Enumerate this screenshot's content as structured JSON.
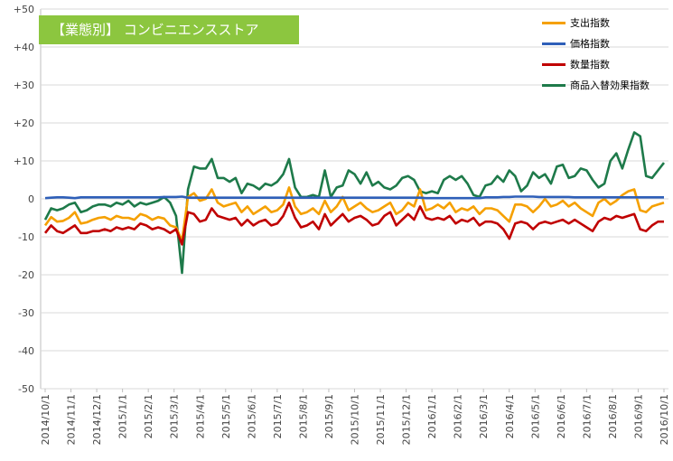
{
  "title": "【業態別】 コンビニエンスストア",
  "colors": {
    "spending": "#f5a000",
    "price": "#2e5fb8",
    "quantity": "#c00000",
    "switching": "#1e7a4a",
    "title_bg": "#8cc63f",
    "grid": "#d9d9d9"
  },
  "chart_data": {
    "type": "line",
    "title": "【業態別】 コンビニエンスストア",
    "xlabel": "",
    "ylabel": "",
    "ylim": [
      -50,
      50
    ],
    "yticks": [
      50,
      40,
      30,
      20,
      10,
      0,
      -10,
      -20,
      -30,
      -40,
      -50
    ],
    "ytick_labels": [
      "+50",
      "+40",
      "+30",
      "+20",
      "+10",
      "0",
      "-10",
      "-20",
      "-30",
      "-40",
      "-50"
    ],
    "xtick_labels": [
      "2014/10/1",
      "2014/11/1",
      "2014/12/1",
      "2015/1/1",
      "2015/2/1",
      "2015/3/1",
      "2015/4/1",
      "2015/5/1",
      "2015/6/1",
      "2015/7/1",
      "2015/8/1",
      "2015/9/1",
      "2015/10/1",
      "2015/11/1",
      "2015/12/1",
      "2016/1/1",
      "2016/2/1",
      "2016/3/1",
      "2016/4/1",
      "2016/5/1",
      "2016/6/1",
      "2016/7/1",
      "2016/8/1",
      "2016/9/1",
      "2016/10/1"
    ],
    "grid": "horizontal",
    "legend_position": "top-right",
    "series": [
      {
        "name": "支出指数",
        "values": [
          -7.0,
          -4.8,
          -6.0,
          -5.8,
          -5.0,
          -3.5,
          -6.5,
          -6.2,
          -5.5,
          -5.0,
          -4.8,
          -5.5,
          -4.5,
          -5.0,
          -5.0,
          -5.5,
          -4.0,
          -4.5,
          -5.5,
          -4.8,
          -5.2,
          -7.0,
          -7.5,
          -11.0,
          0.5,
          1.5,
          -0.5,
          0.0,
          2.5,
          -1.0,
          -2.0,
          -1.5,
          -1.0,
          -3.5,
          -2.0,
          -4.0,
          -3.0,
          -2.0,
          -3.5,
          -3.0,
          -1.5,
          3.0,
          -2.0,
          -4.0,
          -3.5,
          -2.5,
          -4.0,
          -0.5,
          -3.5,
          -2.0,
          0.5,
          -3.0,
          -2.0,
          -1.0,
          -2.5,
          -3.5,
          -3.0,
          -2.0,
          -1.0,
          -4.0,
          -3.0,
          -1.0,
          -2.0,
          2.5,
          -3.0,
          -2.5,
          -1.5,
          -2.5,
          -1.0,
          -3.5,
          -2.5,
          -3.0,
          -2.0,
          -4.0,
          -2.5,
          -2.5,
          -3.0,
          -4.5,
          -6.0,
          -1.5,
          -1.5,
          -2.0,
          -3.5,
          -2.0,
          0.0,
          -2.0,
          -1.5,
          -0.5,
          -2.0,
          -1.0,
          -2.5,
          -3.5,
          -4.5,
          -1.0,
          0.0,
          -1.5,
          -0.5,
          1.0,
          2.0,
          2.5,
          -3.0,
          -3.5,
          -2.0,
          -1.5,
          -1.0
        ]
      },
      {
        "name": "価格指数",
        "values": [
          0.2,
          0.3,
          0.4,
          0.4,
          0.3,
          0.2,
          0.4,
          0.4,
          0.4,
          0.4,
          0.4,
          0.4,
          0.4,
          0.4,
          0.4,
          0.4,
          0.4,
          0.4,
          0.4,
          0.4,
          0.5,
          0.5,
          0.5,
          0.6,
          0.3,
          0.3,
          0.3,
          0.3,
          0.3,
          0.3,
          0.3,
          0.3,
          0.3,
          0.3,
          0.3,
          0.3,
          0.3,
          0.3,
          0.3,
          0.3,
          0.3,
          0.3,
          0.3,
          0.3,
          0.3,
          0.3,
          0.3,
          0.3,
          0.3,
          0.3,
          0.3,
          0.3,
          0.3,
          0.3,
          0.3,
          0.3,
          0.3,
          0.3,
          0.3,
          0.3,
          0.3,
          0.3,
          0.3,
          0.3,
          0.2,
          0.2,
          0.2,
          0.2,
          0.2,
          0.2,
          0.2,
          0.2,
          0.2,
          0.2,
          0.4,
          0.4,
          0.4,
          0.5,
          0.5,
          0.6,
          0.6,
          0.6,
          0.6,
          0.5,
          0.5,
          0.5,
          0.5,
          0.5,
          0.5,
          0.4,
          0.4,
          0.4,
          0.4,
          0.4,
          0.4,
          0.4,
          0.4,
          0.4,
          0.4,
          0.4,
          0.4,
          0.4,
          0.4,
          0.4,
          0.4
        ]
      },
      {
        "name": "数量指数",
        "values": [
          -9.0,
          -7.0,
          -8.5,
          -9.0,
          -8.0,
          -7.0,
          -9.0,
          -9.0,
          -8.5,
          -8.5,
          -8.0,
          -8.5,
          -7.5,
          -8.0,
          -7.5,
          -8.0,
          -6.5,
          -7.0,
          -8.0,
          -7.5,
          -8.0,
          -9.0,
          -8.0,
          -12.0,
          -3.5,
          -4.0,
          -6.0,
          -5.5,
          -2.5,
          -4.5,
          -5.0,
          -5.5,
          -5.0,
          -7.0,
          -5.5,
          -7.0,
          -6.0,
          -5.5,
          -7.0,
          -6.5,
          -4.5,
          -1.0,
          -5.0,
          -7.5,
          -7.0,
          -6.0,
          -8.0,
          -4.0,
          -7.0,
          -5.5,
          -4.0,
          -6.0,
          -5.0,
          -4.5,
          -5.5,
          -7.0,
          -6.5,
          -4.5,
          -3.5,
          -7.0,
          -5.5,
          -4.0,
          -5.5,
          -2.0,
          -5.0,
          -5.5,
          -5.0,
          -5.5,
          -4.5,
          -6.5,
          -5.5,
          -6.0,
          -5.0,
          -7.0,
          -6.0,
          -6.0,
          -6.5,
          -8.0,
          -10.5,
          -6.5,
          -6.0,
          -6.5,
          -8.0,
          -6.5,
          -6.0,
          -6.5,
          -6.0,
          -5.5,
          -6.5,
          -5.5,
          -6.5,
          -7.5,
          -8.5,
          -6.0,
          -5.0,
          -5.5,
          -4.5,
          -5.0,
          -4.5,
          -4.0,
          -8.0,
          -8.5,
          -7.0,
          -6.0,
          -6.0
        ]
      },
      {
        "name": "商品入替効果指数",
        "values": [
          -5.5,
          -2.5,
          -3.0,
          -2.5,
          -1.5,
          -1.0,
          -3.5,
          -3.0,
          -2.0,
          -1.5,
          -1.5,
          -2.0,
          -1.0,
          -1.5,
          -0.5,
          -2.0,
          -1.0,
          -1.5,
          -1.0,
          -0.5,
          0.5,
          -1.0,
          -4.5,
          -19.5,
          2.5,
          8.5,
          8.0,
          8.0,
          10.5,
          5.5,
          5.5,
          4.5,
          5.5,
          1.5,
          4.0,
          3.5,
          2.5,
          4.0,
          3.5,
          4.5,
          6.5,
          10.5,
          3.0,
          0.5,
          0.5,
          1.0,
          0.5,
          7.5,
          0.5,
          3.0,
          3.5,
          7.5,
          6.5,
          4.0,
          7.0,
          3.5,
          4.5,
          3.0,
          2.5,
          3.5,
          5.5,
          6.0,
          5.0,
          2.0,
          1.5,
          2.0,
          1.5,
          5.0,
          6.0,
          5.0,
          6.0,
          4.0,
          1.0,
          0.5,
          3.5,
          4.0,
          6.0,
          4.5,
          7.5,
          6.0,
          2.0,
          3.5,
          7.0,
          5.5,
          6.5,
          4.0,
          8.5,
          9.0,
          5.5,
          6.0,
          8.0,
          7.5,
          5.0,
          3.0,
          4.0,
          10.0,
          12.0,
          8.0,
          13.0,
          17.5,
          16.5,
          6.0,
          5.5,
          7.5,
          9.5
        ]
      }
    ]
  }
}
